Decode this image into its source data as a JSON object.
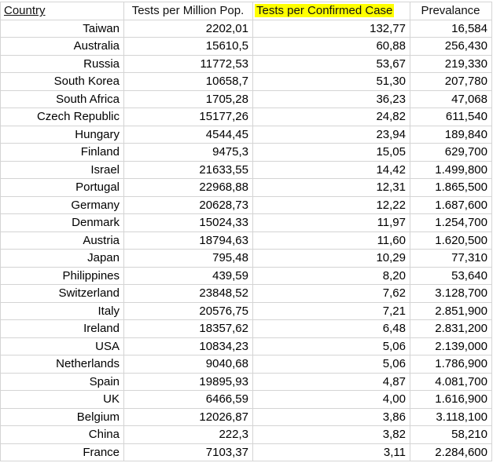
{
  "columns": {
    "country": "Country",
    "tests_per_million": "Tests per Million Pop.",
    "tests_per_case": "Tests per Confirmed Case",
    "prevalence": "Prevalance"
  },
  "rows": [
    {
      "country": "Taiwan",
      "tests_per_million": "2202,01",
      "tests_per_case": "132,77",
      "prevalence": "16,584"
    },
    {
      "country": "Australia",
      "tests_per_million": "15610,5",
      "tests_per_case": "60,88",
      "prevalence": "256,430"
    },
    {
      "country": "Russia",
      "tests_per_million": "11772,53",
      "tests_per_case": "53,67",
      "prevalence": "219,330"
    },
    {
      "country": "South Korea",
      "tests_per_million": "10658,7",
      "tests_per_case": "51,30",
      "prevalence": "207,780"
    },
    {
      "country": "South Africa",
      "tests_per_million": "1705,28",
      "tests_per_case": "36,23",
      "prevalence": "47,068"
    },
    {
      "country": "Czech Republic",
      "tests_per_million": "15177,26",
      "tests_per_case": "24,82",
      "prevalence": "611,540"
    },
    {
      "country": "Hungary",
      "tests_per_million": "4544,45",
      "tests_per_case": "23,94",
      "prevalence": "189,840"
    },
    {
      "country": "Finland",
      "tests_per_million": "9475,3",
      "tests_per_case": "15,05",
      "prevalence": "629,700"
    },
    {
      "country": "Israel",
      "tests_per_million": "21633,55",
      "tests_per_case": "14,42",
      "prevalence": "1.499,800"
    },
    {
      "country": "Portugal",
      "tests_per_million": "22968,88",
      "tests_per_case": "12,31",
      "prevalence": "1.865,500"
    },
    {
      "country": "Germany",
      "tests_per_million": "20628,73",
      "tests_per_case": "12,22",
      "prevalence": "1.687,600"
    },
    {
      "country": "Denmark",
      "tests_per_million": "15024,33",
      "tests_per_case": "11,97",
      "prevalence": "1.254,700"
    },
    {
      "country": "Austria",
      "tests_per_million": "18794,63",
      "tests_per_case": "11,60",
      "prevalence": "1.620,500"
    },
    {
      "country": "Japan",
      "tests_per_million": "795,48",
      "tests_per_case": "10,29",
      "prevalence": "77,310"
    },
    {
      "country": "Philippines",
      "tests_per_million": "439,59",
      "tests_per_case": "8,20",
      "prevalence": "53,640"
    },
    {
      "country": "Switzerland",
      "tests_per_million": "23848,52",
      "tests_per_case": "7,62",
      "prevalence": "3.128,700"
    },
    {
      "country": "Italy",
      "tests_per_million": "20576,75",
      "tests_per_case": "7,21",
      "prevalence": "2.851,900"
    },
    {
      "country": "Ireland",
      "tests_per_million": "18357,62",
      "tests_per_case": "6,48",
      "prevalence": "2.831,200"
    },
    {
      "country": "USA",
      "tests_per_million": "10834,23",
      "tests_per_case": "5,06",
      "prevalence": "2.139,000"
    },
    {
      "country": "Netherlands",
      "tests_per_million": "9040,68",
      "tests_per_case": "5,06",
      "prevalence": "1.786,900"
    },
    {
      "country": "Spain",
      "tests_per_million": "19895,93",
      "tests_per_case": "4,87",
      "prevalence": "4.081,700"
    },
    {
      "country": "UK",
      "tests_per_million": "6466,59",
      "tests_per_case": "4,00",
      "prevalence": "1.616,900"
    },
    {
      "country": "Belgium",
      "tests_per_million": "12026,87",
      "tests_per_case": "3,86",
      "prevalence": "3.118,100"
    },
    {
      "country": "China",
      "tests_per_million": "222,3",
      "tests_per_case": "3,82",
      "prevalence": "58,210"
    },
    {
      "country": "France",
      "tests_per_million": "7103,37",
      "tests_per_case": "3,11",
      "prevalence": "2.284,600"
    }
  ],
  "colors": {
    "header_highlight": "#ffff00",
    "gridline": "#d4d4d4",
    "text": "#000000"
  }
}
